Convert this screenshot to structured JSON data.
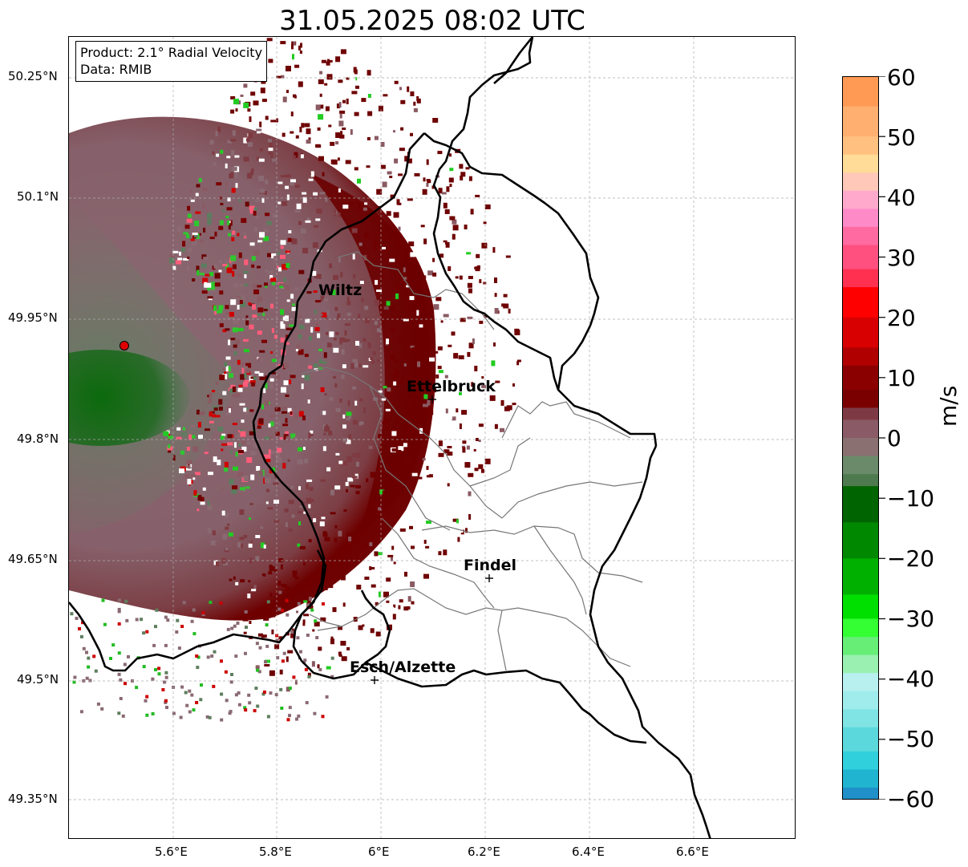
{
  "title": "31.05.2025 08:02 UTC",
  "info_box": {
    "product": "Product: 2.1° Radial Velocity",
    "data_source": "Data: RMIB"
  },
  "axes": {
    "lat_ticks": [
      "50.25°N",
      "50.1°N",
      "49.95°N",
      "49.8°N",
      "49.65°N",
      "49.5°N",
      "49.35°N"
    ],
    "lon_ticks": [
      "5.6°E",
      "5.8°E",
      "6°E",
      "6.2°E",
      "6.4°E",
      "6.6°E"
    ]
  },
  "colorbar": {
    "unit": "m/s",
    "ticks": [
      "60",
      "50",
      "40",
      "30",
      "20",
      "10",
      "0",
      "−10",
      "−20",
      "−30",
      "−40",
      "−50",
      "−60"
    ],
    "vmin": -60,
    "vmax": 60
  },
  "cities": [
    {
      "name": "Wiltz"
    },
    {
      "name": "Ettelbruck"
    },
    {
      "name": "Findel"
    },
    {
      "name": "Esch/Alzette"
    }
  ],
  "radar_site": {
    "marker_color": "#e00000"
  },
  "colors": {
    "receding_dark": "#6b0000",
    "near_zero": "#8a6a70",
    "approaching": "#1f7a1f"
  }
}
